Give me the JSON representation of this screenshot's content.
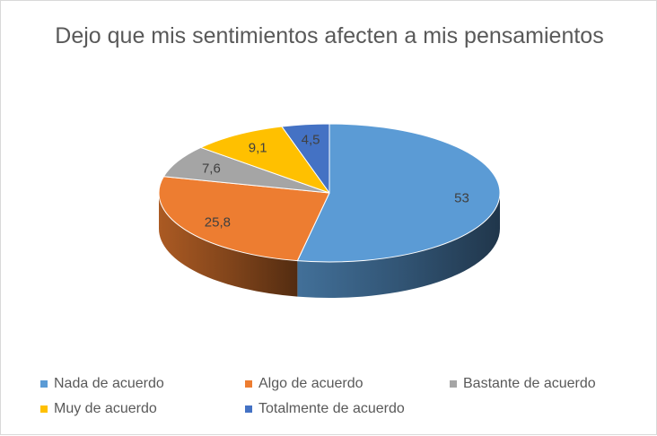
{
  "chart_data": {
    "type": "pie",
    "style": "3d",
    "title": "Dejo que mis sentimientos afecten a mis pensamientos",
    "categories": [
      "Nada de acuerdo",
      "Algo de acuerdo",
      "Bastante de acuerdo",
      "Muy de acuerdo",
      "Totalmente de acuerdo"
    ],
    "values": [
      53,
      25.8,
      7.6,
      9.1,
      4.5
    ],
    "data_labels": [
      "53",
      "25,8",
      "7,6",
      "9,1",
      "4,5"
    ],
    "colors": [
      "#5B9BD5",
      "#ED7D31",
      "#A5A5A5",
      "#FFC000",
      "#4472C4"
    ],
    "legend_position": "bottom"
  }
}
